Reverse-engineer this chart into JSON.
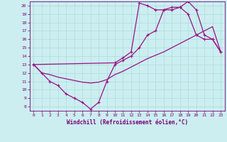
{
  "xlabel": "Windchill (Refroidissement éolien,°C)",
  "bg_color": "#cceef0",
  "line_color": "#991188",
  "grid_color": "#aadddd",
  "spine_color": "#770077",
  "tick_color": "#770077",
  "label_color": "#770077",
  "xlim": [
    -0.5,
    23.5
  ],
  "ylim": [
    7.5,
    20.5
  ],
  "xticks": [
    0,
    1,
    2,
    3,
    4,
    5,
    6,
    7,
    8,
    9,
    10,
    11,
    12,
    13,
    14,
    15,
    16,
    17,
    18,
    19,
    20,
    21,
    22,
    23
  ],
  "yticks": [
    8,
    9,
    10,
    11,
    12,
    13,
    14,
    15,
    16,
    17,
    18,
    19,
    20
  ],
  "line1_x": [
    0,
    1,
    2,
    3,
    4,
    5,
    6,
    7,
    8,
    9,
    10,
    11,
    12,
    13,
    14,
    15,
    16,
    17,
    18,
    19,
    20,
    21,
    22,
    23
  ],
  "line1_y": [
    13,
    12,
    11,
    10.5,
    9.5,
    9.0,
    8.5,
    7.7,
    8.5,
    11.0,
    13.0,
    13.5,
    14.0,
    15.0,
    16.5,
    17.0,
    19.5,
    19.5,
    19.8,
    20.5,
    19.5,
    16.5,
    16.0,
    14.5
  ],
  "line2_x": [
    0,
    1,
    2,
    3,
    4,
    5,
    6,
    7,
    8,
    9,
    10,
    11,
    12,
    13,
    14,
    15,
    16,
    17,
    18,
    19,
    20,
    21,
    22,
    23
  ],
  "line2_y": [
    13,
    12.0,
    11.8,
    11.5,
    11.3,
    11.1,
    10.9,
    10.8,
    10.9,
    11.2,
    11.8,
    12.2,
    12.7,
    13.2,
    13.7,
    14.1,
    14.5,
    15.0,
    15.5,
    16.0,
    16.5,
    17.0,
    17.5,
    14.5
  ],
  "line3_x": [
    0,
    10,
    11,
    12,
    13,
    14,
    15,
    16,
    17,
    18,
    19,
    20,
    21,
    22,
    23
  ],
  "line3_y": [
    13,
    13.2,
    13.8,
    14.5,
    20.3,
    20.0,
    19.5,
    19.5,
    19.8,
    19.8,
    19.0,
    16.5,
    16.0,
    16.0,
    14.5
  ]
}
